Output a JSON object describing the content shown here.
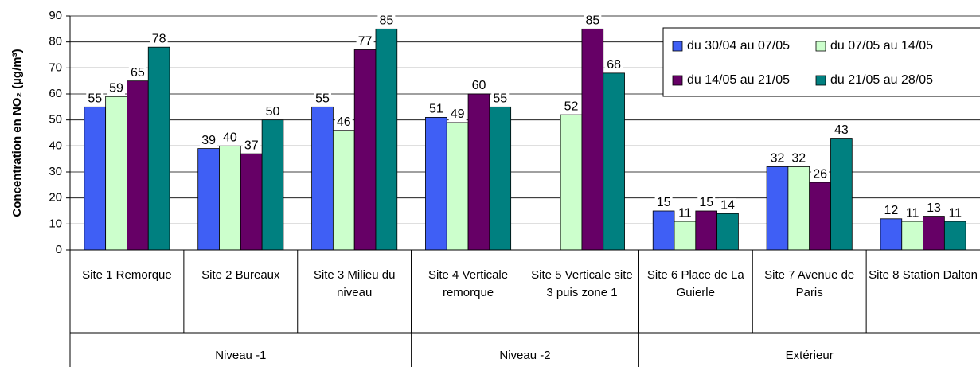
{
  "chart_data": {
    "type": "bar",
    "ylabel": "Concentration en NO₂ (µg/m³)",
    "categories": [
      "Site 1 Remorque",
      "Site 2 Bureaux",
      "Site 3 Milieu du niveau",
      "Site 4 Verticale remorque",
      "Site 5 Verticale site 3 puis zone 1",
      "Site 6 Place de La Guierle",
      "Site 7 Avenue de Paris",
      "Site 8 Station Dalton"
    ],
    "groups": [
      {
        "name": "Niveau -1",
        "span": 3
      },
      {
        "name": "Niveau -2",
        "span": 2
      },
      {
        "name": "Extérieur",
        "span": 3
      }
    ],
    "series": [
      {
        "name": "du 30/04 au 07/05",
        "color": "#3f5ff5",
        "values": [
          55,
          39,
          55,
          51,
          null,
          15,
          32,
          12
        ]
      },
      {
        "name": "du 07/05 au 14/05",
        "color": "#ccffcc",
        "values": [
          59,
          40,
          46,
          49,
          52,
          11,
          32,
          11
        ]
      },
      {
        "name": "du 14/05 au 21/05",
        "color": "#660066",
        "values": [
          65,
          37,
          77,
          60,
          85,
          15,
          26,
          13
        ]
      },
      {
        "name": "du 21/05 au 28/05",
        "color": "#008080",
        "values": [
          78,
          50,
          85,
          55,
          68,
          14,
          43,
          11
        ]
      }
    ],
    "ylim": [
      0,
      90
    ],
    "yticks": [
      0,
      10,
      20,
      30,
      40,
      50,
      60,
      70,
      80,
      90
    ],
    "grid": true,
    "legend": "top-right",
    "data_labels": true
  }
}
